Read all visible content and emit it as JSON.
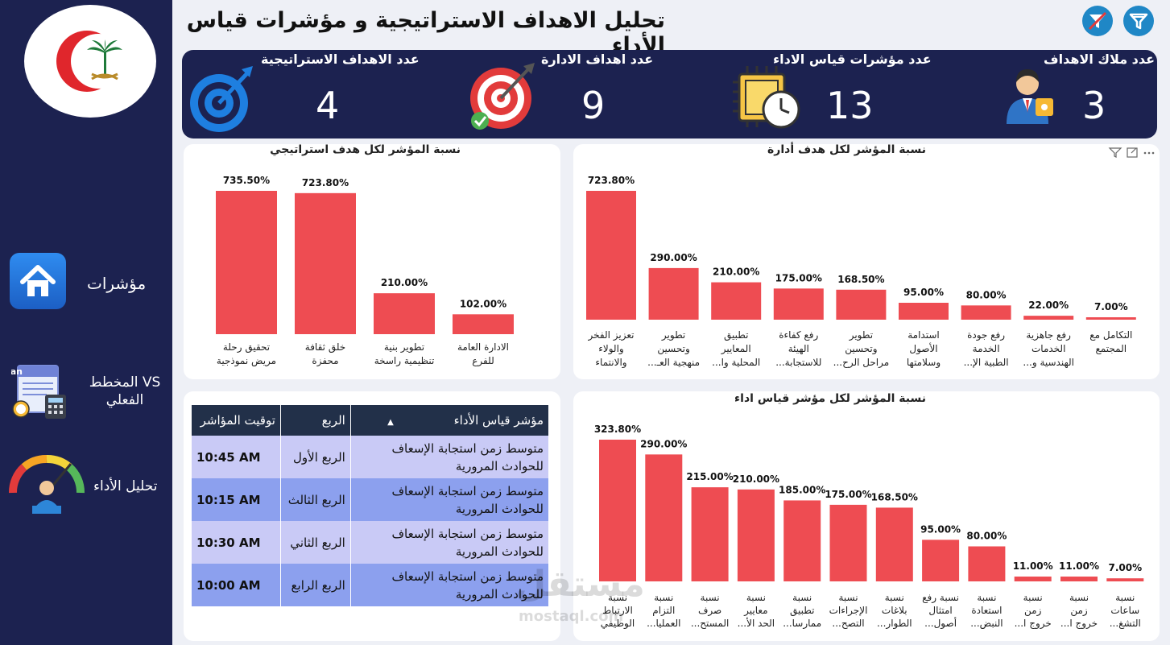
{
  "header": {
    "title": "تحليل الاهداف الاستراتيجية و مؤشرات قياس الأداء"
  },
  "sidebar": {
    "items": [
      {
        "label": "مؤشرات",
        "icon": "home-icon"
      },
      {
        "label": "VS المخطط الفعلي",
        "icon": "plan-calculator-icon",
        "badge": "Plan"
      },
      {
        "label": "تحليل الأداء",
        "icon": "performance-gauge-icon"
      }
    ]
  },
  "kpis": [
    {
      "label": "عدد ملاك الاهداف",
      "value": "3",
      "icon": "owner-person-icon"
    },
    {
      "label": "عدد مؤشرات قياس الاداء",
      "value": "13",
      "icon": "chip-clock-icon"
    },
    {
      "label": "عدد اهداف الادارة",
      "value": "9",
      "icon": "target-check-icon"
    },
    {
      "label": "عدد الاهداف الاستراتيجية",
      "value": "4",
      "icon": "bullseye-icon"
    }
  ],
  "colors": {
    "bar": "#ee4c52",
    "navy": "#1c2250",
    "accent": "#1f87c6"
  },
  "chart_data": [
    {
      "type": "bar",
      "title": "نسبة المؤشر لكل هدف استراتيجي",
      "categories": [
        "تحقيق رحلة مريض نموذجية",
        "خلق ثقافة محفزة",
        "تطوير بنية تنظيمية راسخة",
        "الادارة العامة للفرع"
      ],
      "category_lines": [
        [
          "تحقيق رحلة",
          "مريض نموذجية"
        ],
        [
          "خلق ثقافة",
          "محفزة"
        ],
        [
          "تطوير بنية",
          "تنظيمية راسخة"
        ],
        [
          "الادارة العامة",
          "للفرع"
        ]
      ],
      "values": [
        735.5,
        723.8,
        210.0,
        102.0
      ],
      "labels": [
        "735.50%",
        "723.80%",
        "210.00%",
        "102.00%"
      ]
    },
    {
      "type": "bar",
      "title": "نسبة المؤشر لكل هدف أدارة",
      "categories": [
        "تعزيز الفخر والولاء والانتماء",
        "تطوير وتحسين منهجية العـ...",
        "تطبيق المعايير المحلية وا...",
        "رفع كفاءة الهيئة للاستجابة...",
        "تطوير وتحسين مراحل الرح...",
        "استدامة الأصول وسلامتها",
        "رفع جودة الخدمة الطبية الإ...",
        "رفع جاهزية الخدمات الهندسية و...",
        "التكامل مع المجتمع"
      ],
      "category_lines": [
        [
          "تعزيز الفخر",
          "والولاء",
          "والانتماء"
        ],
        [
          "تطوير",
          "وتحسين",
          "منهجية العـ..."
        ],
        [
          "تطبيق",
          "المعايير",
          "المحلية وا..."
        ],
        [
          "رفع كفاءة",
          "الهيئة",
          "للاستجابة..."
        ],
        [
          "تطوير",
          "وتحسين",
          "مراحل الرح..."
        ],
        [
          "استدامة",
          "الأصول",
          "وسلامتها"
        ],
        [
          "رفع جودة",
          "الخدمة",
          "الطبية الإ..."
        ],
        [
          "رفع جاهزية",
          "الخدمات",
          "الهندسية و..."
        ],
        [
          "التكامل مع",
          "المجتمع"
        ]
      ],
      "values": [
        723.8,
        290.0,
        210.0,
        175.0,
        168.5,
        95.0,
        80.0,
        22.0,
        7.0
      ],
      "labels": [
        "723.80%",
        "290.00%",
        "210.00%",
        "175.00%",
        "168.50%",
        "95.00%",
        "80.00%",
        "22.00%",
        "7.00%"
      ]
    },
    {
      "type": "bar",
      "title": "نسبة المؤشر لكل مؤشر قياس اداء",
      "categories": [
        "نسبة الارتباط الوظيفي",
        "نسبة التزام العمليا...",
        "نسبة صرف المستح...",
        "نسبة معايير الحد الأ...",
        "نسبة تطبيق ممارسا...",
        "نسبة الإجراءات التصح...",
        "نسبة بلاغات الطوار...",
        "نسبة رفع امتثال أصول...",
        "نسبة استعادة النبض...",
        "نسبة زمن خروج ا...",
        "نسبة زمن خروج ا...",
        "نسبة ساعات التشغ..."
      ],
      "category_lines": [
        [
          "نسبة",
          "الارتباط",
          "الوظيفي"
        ],
        [
          "نسبة",
          "التزام",
          "العمليا..."
        ],
        [
          "نسبة",
          "صرف",
          "المستح..."
        ],
        [
          "نسبة",
          "معايير",
          "الحد الأ..."
        ],
        [
          "نسبة",
          "تطبيق",
          "ممارسا..."
        ],
        [
          "نسبة",
          "الإجراءات",
          "التصح..."
        ],
        [
          "نسبة",
          "بلاغات",
          "الطوار..."
        ],
        [
          "نسبة رفع",
          "امتثال",
          "أصول..."
        ],
        [
          "نسبة",
          "استعادة",
          "النبض..."
        ],
        [
          "نسبة",
          "زمن",
          "خروج ا..."
        ],
        [
          "نسبة",
          "زمن",
          "خروج ا..."
        ],
        [
          "نسبة",
          "ساعات",
          "التشغ..."
        ]
      ],
      "values": [
        323.8,
        290.0,
        215.0,
        210.0,
        185.0,
        175.0,
        168.5,
        95.0,
        80.0,
        11.0,
        11.0,
        7.0
      ],
      "labels": [
        "323.80%",
        "290.00%",
        "215.00%",
        "210.00%",
        "185.00%",
        "175.00%",
        "168.50%",
        "95.00%",
        "80.00%",
        "11.00%",
        "11.00%",
        "7.00%"
      ]
    }
  ],
  "table": {
    "columns": [
      "مؤشر قياس الأداء",
      "الربع",
      "توقيت المؤاشر"
    ],
    "rows": [
      {
        "indicator": "متوسط زمن استجابة الإسعاف للحوادث المرورية",
        "quarter": "الربع الأول",
        "time": "10:45 AM"
      },
      {
        "indicator": "متوسط زمن استجابة الإسعاف للحوادث المرورية",
        "quarter": "الربع الثالث",
        "time": "10:15 AM"
      },
      {
        "indicator": "متوسط زمن استجابة الإسعاف للحوادث المرورية",
        "quarter": "الربع الثاني",
        "time": "10:30 AM"
      },
      {
        "indicator": "متوسط زمن استجابة الإسعاف للحوادث المرورية",
        "quarter": "الربع الرابع",
        "time": "10:00 AM"
      }
    ]
  },
  "watermark": {
    "text": "مستقل",
    "subtext": "mostaql.com"
  }
}
